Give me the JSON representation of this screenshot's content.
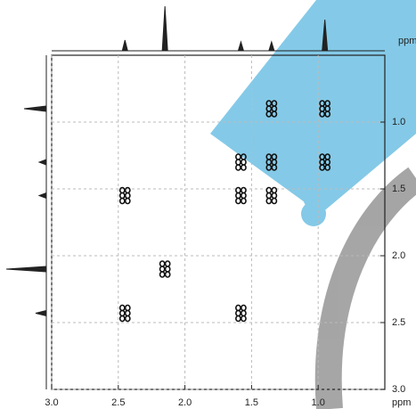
{
  "chart_data": {
    "type": "cosy",
    "xlabel": "ppm",
    "ylabel": "ppm",
    "x": [
      0.95,
      1.35,
      0.95,
      1.35,
      1.58,
      2.45,
      1.58,
      1.35,
      2.15,
      2.45,
      1.58
    ],
    "values": [
      0.9,
      0.9,
      1.3,
      1.3,
      1.3,
      1.55,
      1.55,
      1.55,
      2.1,
      2.43,
      2.43
    ],
    "color": "#111111",
    "xlim": [
      3.0,
      0.5
    ],
    "ylim": [
      0.5,
      3.0
    ],
    "xticks": [
      {
        "value": 3,
        "label": "3.0"
      },
      2.5,
      {
        "value": 2,
        "label": "2.0"
      },
      1.5,
      {
        "value": 1,
        "label": "1.0"
      }
    ],
    "yticks": [
      {
        "value": 1,
        "label": "1.0"
      },
      1.5,
      {
        "value": 2,
        "label": "2.0"
      },
      2.5,
      {
        "value": 3,
        "label": "3.0"
      }
    ],
    "grid": true,
    "x_projection": {
      "peaks": [
        2.45,
        2.15,
        1.58,
        1.35,
        0.95
      ],
      "heights": [
        12,
        50,
        10,
        10,
        35
      ]
    },
    "y_projection": {
      "peaks": [
        0.9,
        1.3,
        1.55,
        2.1,
        2.43
      ],
      "heights": [
        25,
        8,
        8,
        45,
        12
      ]
    }
  }
}
